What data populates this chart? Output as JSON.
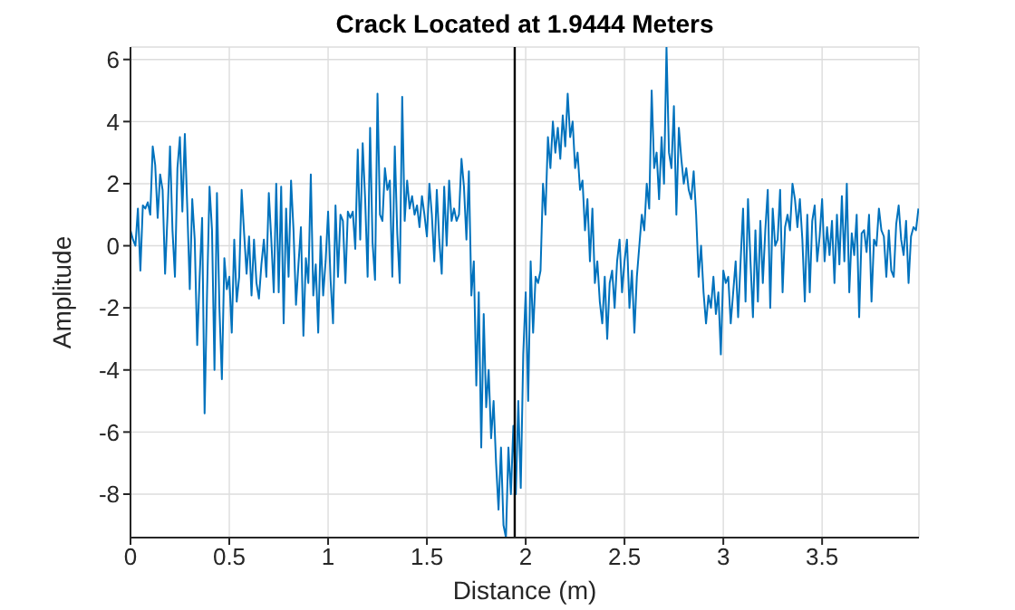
{
  "chart_data": {
    "type": "line",
    "title": "Crack Located at 1.9444 Meters",
    "xlabel": "Distance (m)",
    "ylabel": "Amplitude",
    "xlim": [
      0,
      3.99
    ],
    "xticks": [
      0,
      0.5,
      1,
      1.5,
      2,
      2.5,
      3,
      3.5
    ],
    "ylim": [
      -9.4,
      6.4
    ],
    "yticks": [
      -8,
      -6,
      -4,
      -2,
      0,
      2,
      4,
      6
    ],
    "grid": true,
    "ref_lines": [
      {
        "axis": "x",
        "value": 1.9444,
        "color": "#000000"
      }
    ],
    "series": [
      {
        "color": "#0072bd",
        "values": [
          0.5,
          0.2,
          0,
          1.2,
          -0.8,
          1.3,
          1.2,
          1.4,
          1.0,
          3.2,
          2.6,
          0.9,
          2.3,
          1.8,
          -0.9,
          1.0,
          3.2,
          0.5,
          -1.0,
          2.5,
          3.5,
          1.1,
          3.6,
          1.2,
          -1.4,
          1.5,
          0.2,
          -3.2,
          -1.0,
          0.9,
          -5.4,
          -1.5,
          1.9,
          0.5,
          -4.0,
          1.7,
          -2.0,
          -4.3,
          -0.4,
          -1.4,
          -1.0,
          -2.8,
          0.2,
          -1.8,
          -1.0,
          1.8,
          0.4,
          -0.9,
          0.3,
          -1.6,
          0.2,
          -1.2,
          -1.7,
          -0.6,
          0.2,
          -1.0,
          1.7,
          0.2,
          -1.5,
          2.0,
          -1.5,
          1.9,
          -2.5,
          1.2,
          -1.0,
          2.1,
          0.5,
          -1.9,
          -0.6,
          0.6,
          -2.9,
          -0.4,
          -1.2,
          2.3,
          -1.6,
          -0.6,
          -2.8,
          0.3,
          -1.6,
          -0.5,
          1.1,
          -1.1,
          -2.5,
          1.3,
          -1.0,
          1.0,
          0.8,
          -1.2,
          1.1,
          0.9,
          1.1,
          -0.1,
          3.1,
          0.2,
          3.3,
          1.5,
          -1.0,
          3.8,
          0.1,
          -1.1,
          4.9,
          1.0,
          0.8,
          2.5,
          1.8,
          2.1,
          -1.0,
          3.2,
          0.4,
          -1.2,
          4.8,
          0.8,
          2.1,
          1.2,
          1.6,
          1.0,
          1.3,
          0.6,
          1.6,
          1.0,
          0.3,
          2.0,
          1.0,
          -0.5,
          1.8,
          0.2,
          -0.9,
          1.9,
          0.0,
          2.1,
          0.8,
          1.2,
          0.8,
          1.0,
          2.8,
          1.9,
          0.2,
          2.4,
          -1.6,
          -0.5,
          -4.5,
          -1.5,
          -6.5,
          -2.2,
          -5.2,
          -4.0,
          -6.2,
          -5.0,
          -7.0,
          -8.5,
          -6.5,
          -9.0,
          -9.4,
          -6.5,
          -8.0,
          -5.8,
          -8.0,
          -5.0,
          -7.8,
          -3.5,
          -1.5,
          -5.0,
          -0.5,
          -2.8,
          -1.0,
          -1.2,
          -0.8,
          2.0,
          1.0,
          3.5,
          2.5,
          4.0,
          3.0,
          3.8,
          2.8,
          4.2,
          3.2,
          4.9,
          3.5,
          4.0,
          2.5,
          3.0,
          1.8,
          2.1,
          0.5,
          1.5,
          -0.5,
          1.2,
          -1.2,
          -0.5,
          -1.8,
          -2.5,
          -1.0,
          -3.0,
          -1.2,
          -0.8,
          -2.0,
          -0.5,
          0.2,
          -1.5,
          -0.5,
          0.2,
          -2.0,
          -0.8,
          -2.8,
          -1.0,
          0.0,
          1.0,
          0.5,
          2.0,
          1.2,
          5.0,
          2.5,
          3.0,
          1.5,
          3.5,
          2.0,
          6.4,
          3.0,
          2.5,
          4.5,
          1.0,
          3.8,
          2.8,
          2.0,
          2.5,
          1.8,
          1.5,
          2.4,
          1.0,
          -1.0,
          0.0,
          -1.5,
          -2.5,
          -1.6,
          -2.0,
          -1.0,
          -2.2,
          -1.5,
          -3.5,
          -0.8,
          -1.2,
          -1.0,
          -2.5,
          -1.5,
          -0.5,
          -2.3,
          -0.5,
          1.2,
          -1.8,
          1.5,
          -0.5,
          -2.3,
          0.5,
          -1.8,
          0.8,
          -1.2,
          0.5,
          1.8,
          -2.0,
          1.2,
          0.0,
          0.2,
          1.8,
          -1.5,
          0.6,
          1.0,
          0.5,
          2.0,
          1.5,
          0.6,
          1.5,
          0.2,
          -1.8,
          1.0,
          -1.5,
          0.8,
          1.3,
          -0.5,
          0.3,
          1.5,
          -0.5,
          0.6,
          -0.3,
          0.8,
          -1.2,
          1.0,
          -0.6,
          1.6,
          -0.5,
          2.0,
          -1.5,
          0.4,
          -0.3,
          1.0,
          -2.3,
          0.4,
          0.5,
          -0.2,
          1.0,
          -1.8,
          0.2,
          0.0,
          1.2,
          0.5,
          0.3,
          -1.0,
          0.5,
          -0.8,
          -1.0,
          0.7,
          1.3,
          0.2,
          -0.3,
          0.8,
          -1.2,
          0.3,
          0.6,
          0.5,
          1.2
        ]
      }
    ],
    "x": [
      0,
      0.0125,
      0.025,
      0.0375,
      0.05,
      0.0625,
      0.075,
      0.0875,
      0.1,
      0.1125,
      0.125,
      0.1375,
      0.15,
      0.1625,
      0.175,
      0.1875,
      0.2,
      0.2125,
      0.225,
      0.2375,
      0.25,
      0.2625,
      0.275,
      0.2875,
      0.3,
      0.3125,
      0.325,
      0.3375,
      0.35,
      0.3625,
      0.375,
      0.3875,
      0.4,
      0.4125,
      0.425,
      0.4375,
      0.45,
      0.4625,
      0.475,
      0.4875,
      0.5,
      0.5125,
      0.525,
      0.5375,
      0.55,
      0.5625,
      0.575,
      0.5875,
      0.6,
      0.6125,
      0.625,
      0.6375,
      0.65,
      0.6625,
      0.675,
      0.6875,
      0.7,
      0.7125,
      0.725,
      0.7375,
      0.75,
      0.7625,
      0.775,
      0.7875,
      0.8,
      0.8125,
      0.825,
      0.8375,
      0.85,
      0.8625,
      0.875,
      0.8875,
      0.9,
      0.9125,
      0.925,
      0.9375,
      0.95,
      0.9625,
      0.975,
      0.9875,
      1,
      1.0125,
      1.025,
      1.0375,
      1.05,
      1.0625,
      1.075,
      1.0875,
      1.1,
      1.1125,
      1.125,
      1.1375,
      1.15,
      1.1625,
      1.175,
      1.1875,
      1.2,
      1.2125,
      1.225,
      1.2375,
      1.25,
      1.2625,
      1.275,
      1.2875,
      1.3,
      1.3125,
      1.325,
      1.3375,
      1.35,
      1.3625,
      1.375,
      1.3875,
      1.4,
      1.4125,
      1.425,
      1.4375,
      1.45,
      1.4625,
      1.475,
      1.4875,
      1.5,
      1.5125,
      1.525,
      1.5375,
      1.55,
      1.5625,
      1.575,
      1.5875,
      1.6,
      1.6125,
      1.625,
      1.6375,
      1.65,
      1.6625,
      1.675,
      1.6875,
      1.7,
      1.7125,
      1.725,
      1.7375,
      1.75,
      1.7625,
      1.775,
      1.7875,
      1.8,
      1.8125,
      1.825,
      1.8375,
      1.85,
      1.8625,
      1.875,
      1.8875,
      1.9,
      1.9125,
      1.925,
      1.9375,
      1.95,
      1.9625,
      1.975,
      1.9875,
      2,
      2.0125,
      2.025,
      2.0375,
      2.05,
      2.0625,
      2.075,
      2.0875,
      2.1,
      2.1125,
      2.125,
      2.1375,
      2.15,
      2.1625,
      2.175,
      2.1875,
      2.2,
      2.2125,
      2.225,
      2.2375,
      2.25,
      2.2625,
      2.275,
      2.2875,
      2.3,
      2.3125,
      2.325,
      2.3375,
      2.35,
      2.3625,
      2.375,
      2.3875,
      2.4,
      2.4125,
      2.425,
      2.4375,
      2.45,
      2.4625,
      2.475,
      2.4875,
      2.5,
      2.5125,
      2.525,
      2.5375,
      2.55,
      2.5625,
      2.575,
      2.5875,
      2.6,
      2.6125,
      2.625,
      2.6375,
      2.65,
      2.6625,
      2.675,
      2.6875,
      2.7,
      2.7125,
      2.725,
      2.7375,
      2.75,
      2.7625,
      2.775,
      2.7875,
      2.8,
      2.8125,
      2.825,
      2.8375,
      2.85,
      2.8625,
      2.875,
      2.8875,
      2.9,
      2.9125,
      2.925,
      2.9375,
      2.95,
      2.9625,
      2.975,
      2.9875,
      3,
      3.0125,
      3.025,
      3.0375,
      3.05,
      3.0625,
      3.075,
      3.0875,
      3.1,
      3.1125,
      3.125,
      3.1375,
      3.15,
      3.1625,
      3.175,
      3.1875,
      3.2,
      3.2125,
      3.225,
      3.2375,
      3.25,
      3.2625,
      3.275,
      3.2875,
      3.3,
      3.3125,
      3.325,
      3.3375,
      3.35,
      3.3625,
      3.375,
      3.3875,
      3.4,
      3.4125,
      3.425,
      3.4375,
      3.45,
      3.4625,
      3.475,
      3.4875,
      3.5,
      3.5125,
      3.525,
      3.5375,
      3.55,
      3.5625,
      3.575,
      3.5875,
      3.6,
      3.6125,
      3.625,
      3.6375,
      3.65,
      3.6625,
      3.675,
      3.6875,
      3.7,
      3.7125,
      3.725,
      3.7375,
      3.75,
      3.7625,
      3.775,
      3.7875,
      3.8,
      3.8125,
      3.825,
      3.8375,
      3.85,
      3.8625,
      3.875,
      3.8875,
      3.9,
      3.9125,
      3.925,
      3.9375,
      3.95,
      3.9625,
      3.975,
      3.9875
    ]
  }
}
